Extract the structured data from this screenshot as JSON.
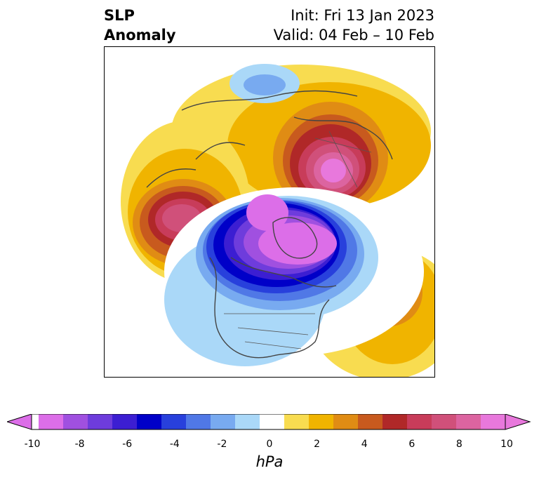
{
  "title": {
    "line1": "SLP",
    "line2": "Anomaly",
    "init": "Init: Fri 13 Jan 2023",
    "valid": "Valid: 04 Feb – 10 Feb"
  },
  "colorbar": {
    "ticks": [
      "-10",
      "-8",
      "-6",
      "-4",
      "-2",
      "0",
      "2",
      "4",
      "6",
      "8",
      "10"
    ],
    "units": "hPa",
    "colors": [
      "#dc6ee8",
      "#a050e0",
      "#6e3cdc",
      "#3c1ed2",
      "#0000c8",
      "#2840dc",
      "#5078e6",
      "#78aaf0",
      "#aad8f8",
      "#ffffff",
      "#f8dc50",
      "#f0b400",
      "#e08c14",
      "#c85a1e",
      "#b02828",
      "#c83c5a",
      "#d0507a",
      "#dc64a0",
      "#e878dc"
    ]
  },
  "map": {
    "projection": "north-polar-stereographic",
    "features": [
      "positive anomaly over northern Eurasia/Scandinavia",
      "positive anomaly over northeast Pacific",
      "positive anomaly over central Atlantic",
      "negative anomaly over Greenland and northern Canada"
    ]
  }
}
